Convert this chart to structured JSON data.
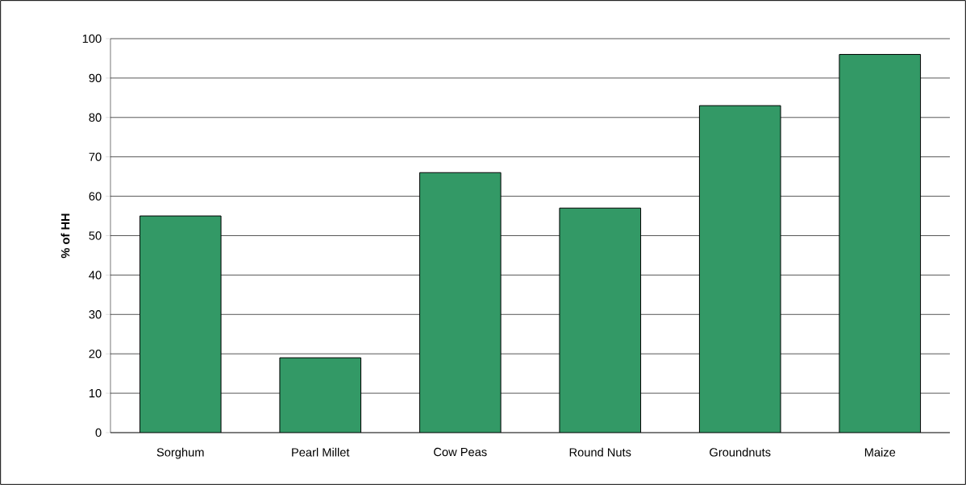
{
  "chart_data": {
    "type": "bar",
    "ylabel": "**% of HH**",
    "categories": [
      "Sorghum",
      "Pearl Millet",
      "Cow Peas",
      "Round Nuts",
      "Groundnuts",
      "Maize"
    ],
    "values": [
      55,
      19,
      66,
      57,
      83,
      96
    ],
    "color": "#339966",
    "ylim": [
      0,
      100
    ],
    "yticks": [
      0,
      10,
      20,
      30,
      40,
      50,
      60,
      70,
      80,
      90,
      100
    ],
    "grid": "y"
  }
}
